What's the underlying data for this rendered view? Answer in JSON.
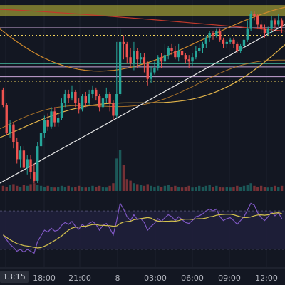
{
  "colors": {
    "background": "#131722",
    "bull": "#26a69a",
    "bear": "#ef5350",
    "resistance_zone": "#c9c33a",
    "dotted_level": "#f0d35c",
    "line_lavender": "#c9a7d8",
    "line_teal": "#3fa58f",
    "line_orange": "#d08a2c",
    "line_gold": "#e2b44a",
    "line_red": "#c0392b",
    "trendline": "#e8e8e8",
    "rsi_line": "#7e57c2",
    "rsi_ma": "#d4c24e",
    "rsi_band": "#1f1f3a",
    "grid": "#1e222d",
    "axis_text": "#b2b5be"
  },
  "time_axis": {
    "current_label": "13:15",
    "labels": [
      "18:00",
      "21:00",
      "8",
      "03:00",
      "06:00",
      "09:00",
      "12:00"
    ]
  },
  "chart_data": {
    "type": "candlestick",
    "title": "",
    "series": [
      {
        "name": "",
        "ohlc": [
          [
            12,
            5,
            13,
            4
          ],
          [
            5,
            -8,
            6,
            -9
          ],
          [
            -8,
            -4,
            -2,
            -10
          ],
          [
            -4,
            -12,
            -3,
            -15
          ],
          [
            -12,
            -20,
            -10,
            -22
          ],
          [
            -20,
            -16,
            -14,
            -24
          ],
          [
            -16,
            -24,
            -14,
            -26
          ],
          [
            -24,
            -20,
            -18,
            -27
          ],
          [
            -20,
            -26,
            -18,
            -29
          ],
          [
            -26,
            -30,
            -22,
            -31
          ],
          [
            -30,
            -14,
            -12,
            -31
          ],
          [
            -14,
            -8,
            -6,
            -16
          ],
          [
            -8,
            -2,
            0,
            -10
          ],
          [
            -2,
            -5,
            1,
            -7
          ],
          [
            -5,
            2,
            4,
            -6
          ],
          [
            2,
            -3,
            4,
            -5
          ],
          [
            -3,
            -1,
            1,
            -5
          ],
          [
            -1,
            6,
            8,
            -2
          ],
          [
            6,
            10,
            12,
            4
          ],
          [
            10,
            8,
            12,
            6
          ],
          [
            8,
            11,
            14,
            7
          ],
          [
            11,
            6,
            12,
            4
          ],
          [
            6,
            3,
            8,
            1
          ],
          [
            3,
            9,
            10,
            2
          ],
          [
            9,
            6,
            11,
            4
          ],
          [
            6,
            10,
            12,
            5
          ],
          [
            10,
            12,
            14,
            8
          ],
          [
            12,
            9,
            13,
            7
          ],
          [
            9,
            4,
            10,
            2
          ],
          [
            4,
            8,
            9,
            3
          ],
          [
            8,
            10,
            13,
            6
          ],
          [
            10,
            6,
            11,
            2
          ],
          [
            6,
            0,
            7,
            -2
          ],
          [
            0,
            10,
            34,
            -1
          ],
          [
            10,
            34,
            40,
            9
          ],
          [
            34,
            33,
            37,
            26
          ],
          [
            33,
            27,
            34,
            24
          ],
          [
            27,
            24,
            31,
            22
          ],
          [
            24,
            30,
            34,
            21
          ],
          [
            30,
            26,
            31,
            22
          ],
          [
            26,
            27,
            29,
            24
          ],
          [
            27,
            24,
            29,
            20
          ],
          [
            24,
            17,
            25,
            14
          ],
          [
            17,
            20,
            23,
            15
          ],
          [
            20,
            22,
            25,
            19
          ],
          [
            22,
            27,
            28,
            21
          ],
          [
            27,
            25,
            29,
            22
          ],
          [
            25,
            28,
            33,
            24
          ],
          [
            28,
            31,
            32,
            26
          ],
          [
            31,
            30,
            33,
            28
          ],
          [
            30,
            27,
            32,
            26
          ],
          [
            27,
            30,
            33,
            25
          ],
          [
            30,
            28,
            31,
            26
          ],
          [
            28,
            26,
            29,
            24
          ],
          [
            26,
            25,
            28,
            22
          ],
          [
            25,
            27,
            29,
            23
          ],
          [
            27,
            30,
            32,
            26
          ],
          [
            30,
            31,
            33,
            29
          ],
          [
            31,
            33,
            34,
            29
          ],
          [
            33,
            36,
            37,
            31
          ],
          [
            36,
            38,
            39,
            34
          ],
          [
            38,
            37,
            39,
            35
          ],
          [
            37,
            39,
            40,
            36
          ],
          [
            39,
            35,
            40,
            34
          ],
          [
            35,
            33,
            36,
            31
          ],
          [
            33,
            34,
            35,
            31
          ],
          [
            34,
            35,
            36,
            33
          ],
          [
            35,
            33,
            36,
            31
          ],
          [
            33,
            30,
            34,
            29
          ],
          [
            30,
            32,
            33,
            29
          ],
          [
            32,
            35,
            36,
            31
          ],
          [
            35,
            40,
            44,
            34
          ],
          [
            40,
            47,
            48,
            39
          ],
          [
            47,
            46,
            48,
            44
          ],
          [
            46,
            42,
            47,
            40
          ],
          [
            42,
            40,
            44,
            38
          ],
          [
            40,
            38,
            42,
            36
          ],
          [
            38,
            40,
            41,
            37
          ],
          [
            40,
            44,
            46,
            38
          ],
          [
            44,
            42,
            45,
            40
          ],
          [
            42,
            44,
            47,
            41
          ],
          [
            44,
            41,
            45,
            38
          ]
        ],
        "volume": [
          6,
          5,
          7,
          8,
          6,
          5,
          7,
          6,
          8,
          9,
          7,
          6,
          5,
          6,
          5,
          4,
          5,
          6,
          5,
          6,
          4,
          5,
          6,
          5,
          4,
          5,
          6,
          5,
          6,
          5,
          4,
          6,
          9,
          38,
          48,
          30,
          14,
          12,
          9,
          8,
          7,
          6,
          8,
          6,
          5,
          6,
          5,
          6,
          7,
          5,
          6,
          5,
          4,
          5,
          6,
          4,
          5,
          6,
          5,
          6,
          7,
          5,
          6,
          5,
          4,
          5,
          4,
          5,
          6,
          5,
          6,
          7,
          9,
          6,
          5,
          6,
          5,
          4,
          5,
          6,
          5,
          6
        ],
        "rsi": [
          45,
          40,
          35,
          32,
          28,
          30,
          27,
          30,
          28,
          26,
          38,
          44,
          50,
          48,
          52,
          49,
          50,
          55,
          58,
          56,
          59,
          54,
          51,
          56,
          53,
          57,
          59,
          56,
          50,
          55,
          57,
          52,
          45,
          60,
          78,
          72,
          64,
          60,
          66,
          61,
          62,
          58,
          50,
          54,
          57,
          62,
          59,
          63,
          66,
          64,
          60,
          64,
          61,
          58,
          57,
          60,
          64,
          65,
          67,
          70,
          72,
          70,
          72,
          64,
          60,
          62,
          63,
          60,
          56,
          60,
          64,
          71,
          78,
          76,
          68,
          63,
          60,
          64,
          69,
          65,
          68,
          62
        ]
      }
    ],
    "levels": [
      50,
      47,
      37,
      26,
      22,
      16,
      -9
    ]
  }
}
